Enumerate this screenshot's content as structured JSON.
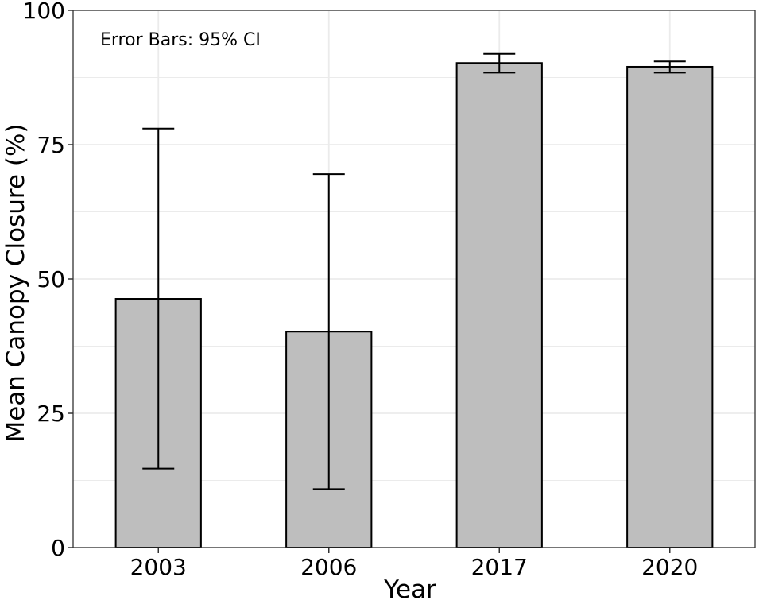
{
  "chart_data": {
    "type": "bar",
    "title": "",
    "xlabel": "Year",
    "ylabel": "Mean Canopy Closure (%)",
    "categories": [
      "2003",
      "2006",
      "2017",
      "2020"
    ],
    "values": [
      46.3,
      40.2,
      90.2,
      89.5
    ],
    "error_lower": [
      14.7,
      10.9,
      88.4,
      88.4
    ],
    "error_upper": [
      78.0,
      69.5,
      91.9,
      90.5
    ],
    "ylim": [
      0,
      100
    ],
    "yticks": [
      0,
      25,
      50,
      75,
      100
    ],
    "ytick_labels": [
      "0",
      "25",
      "50",
      "75",
      "100"
    ],
    "annotation": "Error Bars: 95% CI",
    "grid": true,
    "colors": {
      "bar_fill": "#bebebe",
      "bar_stroke": "#000000",
      "grid": "#ebebeb"
    }
  }
}
